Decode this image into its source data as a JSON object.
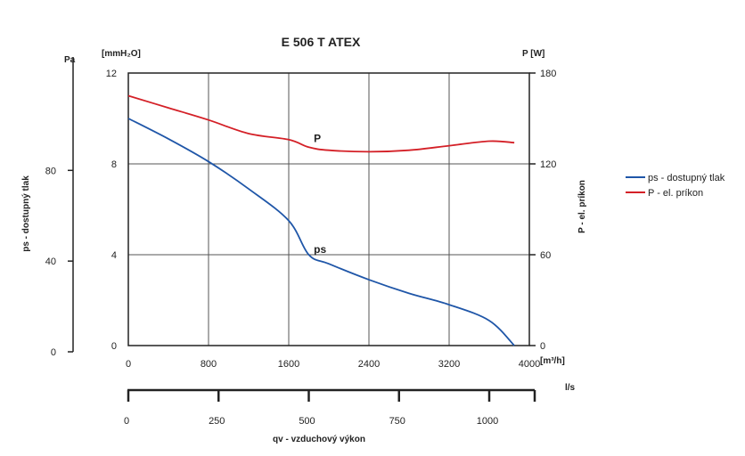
{
  "chart_data": {
    "type": "line",
    "title": "E 506 T ATEX",
    "xlabel": "qv - vzduchový výkon",
    "x_unit_primary": "[m³/h]",
    "x_unit_secondary": "l/s",
    "x_range": [
      0,
      4000
    ],
    "x_ticks": [
      0,
      800,
      1600,
      2400,
      3200,
      4000
    ],
    "x2_range": [
      0,
      1111
    ],
    "x2_ticks": [
      0,
      250,
      500,
      750,
      1000
    ],
    "y_left_label": "ps - dostupný tlak",
    "y_left_unit_pa": "Pa",
    "y_left_pa_ticks": [
      0,
      40,
      80
    ],
    "y_left_unit_mm": "[mmH₂O]",
    "y_left_mm_range": [
      0,
      12
    ],
    "y_left_mm_ticks": [
      0,
      4,
      8,
      12
    ],
    "y_right_label": "P - el. príkon",
    "y_right_unit": "P [W]",
    "y_right_range": [
      0,
      180
    ],
    "y_right_ticks": [
      0,
      60,
      120,
      180
    ],
    "grid": true,
    "legend_position": "right",
    "series": [
      {
        "name": "ps - dostupný tlak",
        "label_on_chart": "ps",
        "axis": "left_mmH2O",
        "color": "#1f56a8",
        "x": [
          0,
          400,
          800,
          1200,
          1600,
          1800,
          2000,
          2400,
          2800,
          3200,
          3600,
          3850
        ],
        "y": [
          10.0,
          9.1,
          8.1,
          6.9,
          5.5,
          4.0,
          3.6,
          2.9,
          2.3,
          1.8,
          1.1,
          0.0
        ]
      },
      {
        "name": "P - el. príkon",
        "label_on_chart": "P",
        "axis": "right_W",
        "color": "#d42027",
        "x": [
          0,
          400,
          800,
          1200,
          1600,
          1800,
          2000,
          2400,
          2800,
          3200,
          3600,
          3850
        ],
        "y": [
          165,
          157,
          149,
          140,
          136,
          131,
          129,
          128,
          129,
          132,
          135,
          134
        ]
      }
    ]
  }
}
